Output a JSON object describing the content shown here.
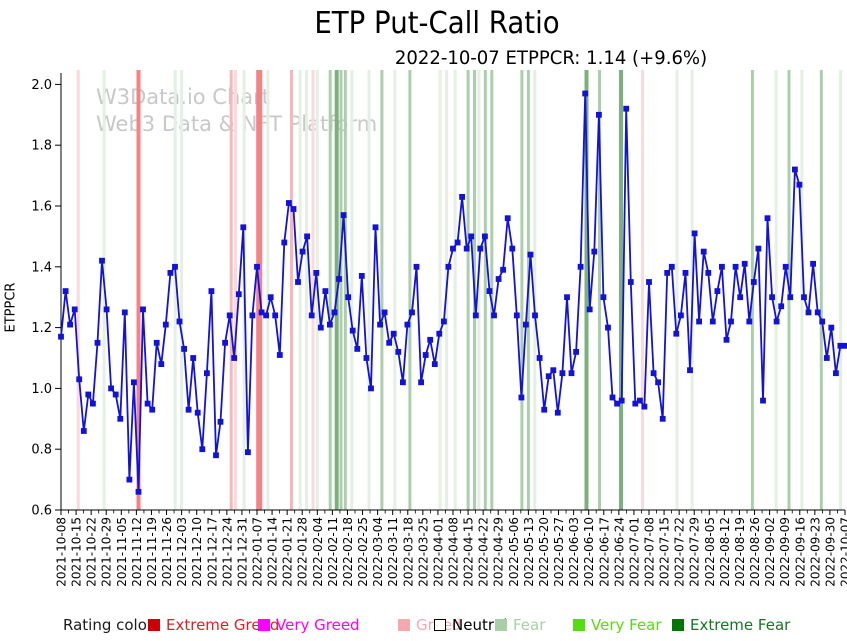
{
  "title": "ETP Put-Call Ratio",
  "subtitle": "2022-10-07 ETPPCR: 1.14 (+9.6%)",
  "watermark": {
    "line1": "W3Data.io Chart",
    "line2": "Web3 Data & NFT Platform"
  },
  "legend": {
    "label": "Rating color",
    "items": [
      {
        "label": "Extreme Greed",
        "color": "#cc0000",
        "text_color": "#e02020",
        "border": "#cc0000"
      },
      {
        "label": "Very Greed",
        "color": "#ff00ff",
        "text_color": "#ff00ff",
        "border": "#ff00ff"
      },
      {
        "label": "Greed",
        "color": "#f5a8ae",
        "text_color": "#f5a8ae",
        "border": "#f5a8ae"
      },
      {
        "label": "Neutral",
        "color": "#ffffff",
        "text_color": "#000000",
        "border": "#000000"
      },
      {
        "label": "Fear",
        "color": "#a9cfa9",
        "text_color": "#a9cfa9",
        "border": "#a9cfa9"
      },
      {
        "label": "Very Fear",
        "color": "#55dd11",
        "text_color": "#55dd11",
        "border": "#55dd11"
      },
      {
        "label": "Extreme Fear",
        "color": "#007700",
        "text_color": "#117722",
        "border": "#007700"
      }
    ]
  },
  "chart_data": {
    "type": "line",
    "series_name": "ETPPCR",
    "title": "ETP Put-Call Ratio",
    "ylabel": "ETPPCR",
    "xlabel": "",
    "line_color": "#1212d9",
    "marker": "square",
    "ylim": [
      0.6,
      2.04
    ],
    "y_ticks": [
      "0.6",
      "0.8",
      "1.0",
      "1.2",
      "1.4",
      "1.6",
      "1.8",
      "2.0"
    ],
    "x_start_date": "2021-10-08",
    "x_end_date": "2022-10-07",
    "x_tick_labels": [
      "2021-10-08",
      "2021-10-15",
      "2021-10-22",
      "2021-10-29",
      "2021-11-05",
      "2021-11-12",
      "2021-11-19",
      "2021-11-26",
      "2021-12-03",
      "2021-12-10",
      "2021-12-17",
      "2021-12-24",
      "2021-12-31",
      "2022-01-07",
      "2022-01-14",
      "2022-01-21",
      "2022-01-28",
      "2022-02-04",
      "2022-02-11",
      "2022-02-18",
      "2022-02-25",
      "2022-03-04",
      "2022-03-11",
      "2022-03-18",
      "2022-03-25",
      "2022-04-01",
      "2022-04-08",
      "2022-04-15",
      "2022-04-22",
      "2022-04-29",
      "2022-05-06",
      "2022-05-13",
      "2022-05-20",
      "2022-05-27",
      "2022-06-03",
      "2022-06-10",
      "2022-06-17",
      "2022-06-24",
      "2022-07-01",
      "2022-07-08",
      "2022-07-15",
      "2022-07-22",
      "2022-07-29",
      "2022-08-05",
      "2022-08-12",
      "2022-08-19",
      "2022-08-26",
      "2022-09-02",
      "2022-09-09",
      "2022-09-16",
      "2022-09-23",
      "2022-09-30",
      "2022-10-07"
    ],
    "values": [
      1.17,
      1.32,
      1.21,
      1.26,
      1.03,
      0.86,
      0.98,
      0.95,
      1.15,
      1.42,
      1.26,
      1.0,
      0.98,
      0.9,
      1.25,
      0.7,
      1.02,
      0.66,
      1.26,
      0.95,
      0.93,
      1.15,
      1.08,
      1.21,
      1.38,
      1.4,
      1.22,
      1.13,
      0.93,
      1.1,
      0.92,
      0.8,
      1.05,
      1.32,
      0.78,
      0.89,
      1.15,
      1.24,
      1.1,
      1.31,
      1.53,
      0.79,
      1.24,
      1.4,
      1.25,
      1.24,
      1.3,
      1.24,
      1.11,
      1.48,
      1.61,
      1.59,
      1.35,
      1.45,
      1.5,
      1.24,
      1.38,
      1.2,
      1.32,
      1.21,
      1.25,
      1.36,
      1.57,
      1.3,
      1.19,
      1.13,
      1.37,
      1.1,
      1.0,
      1.53,
      1.21,
      1.25,
      1.15,
      1.18,
      1.12,
      1.02,
      1.21,
      1.25,
      1.4,
      1.02,
      1.11,
      1.16,
      1.08,
      1.18,
      1.22,
      1.4,
      1.46,
      1.48,
      1.63,
      1.46,
      1.5,
      1.24,
      1.46,
      1.5,
      1.32,
      1.24,
      1.36,
      1.39,
      1.56,
      1.46,
      1.24,
      0.97,
      1.21,
      1.44,
      1.24,
      1.1,
      0.93,
      1.04,
      1.06,
      0.92,
      1.05,
      1.3,
      1.05,
      1.12,
      1.4,
      1.97,
      1.26,
      1.45,
      1.9,
      1.3,
      1.2,
      0.97,
      0.95,
      0.96,
      1.92,
      1.35,
      0.95,
      0.96,
      0.94,
      1.35,
      1.05,
      1.02,
      0.9,
      1.38,
      1.4,
      1.18,
      1.24,
      1.38,
      1.06,
      1.51,
      1.22,
      1.45,
      1.38,
      1.22,
      1.32,
      1.4,
      1.16,
      1.22,
      1.4,
      1.3,
      1.41,
      1.22,
      1.35,
      1.46,
      0.96,
      1.56,
      1.3,
      1.22,
      1.27,
      1.4,
      1.3,
      1.72,
      1.67,
      1.3,
      1.25,
      1.41,
      1.25,
      1.22,
      1.1,
      1.2,
      1.05,
      1.14,
      1.14
    ],
    "latest_value": 1.14,
    "latest_change_pct": "+9.6%",
    "band_palette": {
      "Greed": {
        "light": "#fbd9dc",
        "medium": "#f7b6ba",
        "strong": "#f48286"
      },
      "Fear": {
        "light": "#e3f0e3",
        "medium": "#abcfab",
        "dark": "#7cb07c"
      }
    },
    "background_bands": [
      {
        "date": "2021-10-16",
        "rating": "Greed",
        "intensity": "light"
      },
      {
        "date": "2021-10-28",
        "rating": "Fear",
        "intensity": "light"
      },
      {
        "date": "2021-11-13",
        "rating": "Greed",
        "intensity": "strong",
        "width": 4
      },
      {
        "date": "2021-11-30",
        "rating": "Fear",
        "intensity": "light"
      },
      {
        "date": "2021-12-03",
        "rating": "Fear",
        "intensity": "light"
      },
      {
        "date": "2021-12-26",
        "rating": "Greed",
        "intensity": "medium"
      },
      {
        "date": "2021-12-28",
        "rating": "Greed",
        "intensity": "light"
      },
      {
        "date": "2022-01-01",
        "rating": "Fear",
        "intensity": "light"
      },
      {
        "date": "2022-01-08",
        "rating": "Greed",
        "intensity": "strong",
        "width": 6
      },
      {
        "date": "2022-01-12",
        "rating": "Fear",
        "intensity": "light"
      },
      {
        "date": "2022-01-23",
        "rating": "Greed",
        "intensity": "medium"
      },
      {
        "date": "2022-01-27",
        "rating": "Fear",
        "intensity": "light"
      },
      {
        "date": "2022-01-30",
        "rating": "Fear",
        "intensity": "light"
      },
      {
        "date": "2022-02-02",
        "rating": "Greed",
        "intensity": "light"
      },
      {
        "date": "2022-02-04",
        "rating": "Fear",
        "intensity": "light"
      },
      {
        "date": "2022-02-10",
        "rating": "Fear",
        "intensity": "medium"
      },
      {
        "date": "2022-02-13",
        "rating": "Fear",
        "intensity": "dark",
        "width": 4
      },
      {
        "date": "2022-02-15",
        "rating": "Fear",
        "intensity": "medium"
      },
      {
        "date": "2022-02-17",
        "rating": "Fear",
        "intensity": "medium"
      },
      {
        "date": "2022-02-20",
        "rating": "Fear",
        "intensity": "light"
      },
      {
        "date": "2022-02-28",
        "rating": "Fear",
        "intensity": "light"
      },
      {
        "date": "2022-03-06",
        "rating": "Fear",
        "intensity": "medium"
      },
      {
        "date": "2022-03-12",
        "rating": "Fear",
        "intensity": "light"
      },
      {
        "date": "2022-03-19",
        "rating": "Fear",
        "intensity": "medium"
      },
      {
        "date": "2022-04-02",
        "rating": "Fear",
        "intensity": "light"
      },
      {
        "date": "2022-04-05",
        "rating": "Fear",
        "intensity": "light"
      },
      {
        "date": "2022-04-09",
        "rating": "Fear",
        "intensity": "light"
      },
      {
        "date": "2022-04-15",
        "rating": "Fear",
        "intensity": "medium"
      },
      {
        "date": "2022-04-18",
        "rating": "Fear",
        "intensity": "medium"
      },
      {
        "date": "2022-04-20",
        "rating": "Fear",
        "intensity": "light"
      },
      {
        "date": "2022-04-23",
        "rating": "Fear",
        "intensity": "medium"
      },
      {
        "date": "2022-04-26",
        "rating": "Fear",
        "intensity": "medium"
      },
      {
        "date": "2022-05-10",
        "rating": "Fear",
        "intensity": "medium"
      },
      {
        "date": "2022-05-13",
        "rating": "Fear",
        "intensity": "medium"
      },
      {
        "date": "2022-05-16",
        "rating": "Fear",
        "intensity": "light"
      },
      {
        "date": "2022-06-09",
        "rating": "Fear",
        "intensity": "dark",
        "width": 4
      },
      {
        "date": "2022-06-15",
        "rating": "Fear",
        "intensity": "medium"
      },
      {
        "date": "2022-06-25",
        "rating": "Fear",
        "intensity": "dark",
        "width": 4
      },
      {
        "date": "2022-07-05",
        "rating": "Greed",
        "intensity": "light"
      },
      {
        "date": "2022-07-21",
        "rating": "Fear",
        "intensity": "light"
      },
      {
        "date": "2022-07-28",
        "rating": "Fear",
        "intensity": "light"
      },
      {
        "date": "2022-08-25",
        "rating": "Fear",
        "intensity": "medium"
      },
      {
        "date": "2022-09-05",
        "rating": "Fear",
        "intensity": "light"
      },
      {
        "date": "2022-09-11",
        "rating": "Fear",
        "intensity": "medium"
      },
      {
        "date": "2022-09-17",
        "rating": "Fear",
        "intensity": "light"
      },
      {
        "date": "2022-09-26",
        "rating": "Fear",
        "intensity": "medium"
      },
      {
        "date": "2022-10-05",
        "rating": "Fear",
        "intensity": "light"
      }
    ],
    "grid": false,
    "legend_position": "bottom"
  }
}
